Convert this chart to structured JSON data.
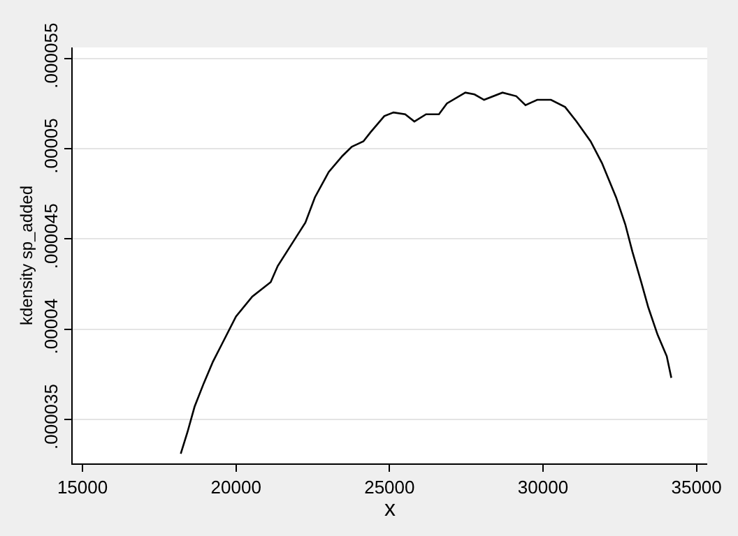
{
  "chart_data": {
    "type": "line",
    "xlabel": "x",
    "ylabel": "kdensity sp_added",
    "x": [
      18200,
      18420,
      18650,
      18950,
      19250,
      19550,
      20000,
      20530,
      21130,
      21360,
      21960,
      22260,
      22570,
      23020,
      23470,
      23770,
      24150,
      24380,
      24830,
      25130,
      25510,
      25810,
      26190,
      26610,
      26870,
      27470,
      27770,
      28080,
      28680,
      29130,
      29430,
      29810,
      30260,
      30720,
      31090,
      31550,
      31920,
      32380,
      32680,
      32910,
      33200,
      33430,
      33730,
      34030,
      34180
    ],
    "series": [
      {
        "color": "#000000",
        "values": [
          3.31e-05,
          3.43e-05,
          3.57e-05,
          3.7e-05,
          3.82e-05,
          3.92e-05,
          4.07e-05,
          4.18e-05,
          4.26e-05,
          4.35e-05,
          4.51e-05,
          4.59e-05,
          4.73e-05,
          4.87e-05,
          4.96e-05,
          5.01e-05,
          5.04e-05,
          5.09e-05,
          5.18e-05,
          5.2e-05,
          5.19e-05,
          5.15e-05,
          5.19e-05,
          5.19e-05,
          5.25e-05,
          5.31e-05,
          5.3e-05,
          5.27e-05,
          5.31e-05,
          5.29e-05,
          5.24e-05,
          5.27e-05,
          5.27e-05,
          5.23e-05,
          5.15e-05,
          5.04e-05,
          4.92e-05,
          4.73e-05,
          4.58e-05,
          4.43e-05,
          4.26e-05,
          4.12e-05,
          3.97e-05,
          3.85e-05,
          3.73e-05
        ]
      }
    ],
    "xlim": [
      14680,
      35350
    ],
    "xticks": [
      15000,
      20000,
      25000,
      30000,
      35000
    ],
    "ylim": [
      3.256e-05,
      5.56e-05
    ],
    "yticks": [
      {
        "value": 3.5e-05,
        "label": ".000035"
      },
      {
        "value": 4e-05,
        "label": ".00004"
      },
      {
        "value": 4.5e-05,
        "label": ".000045"
      },
      {
        "value": 5e-05,
        "label": ".00005"
      },
      {
        "value": 5.5e-05,
        "label": ".000055"
      }
    ],
    "grid": "y",
    "marker": "none",
    "line_style": "solid"
  }
}
